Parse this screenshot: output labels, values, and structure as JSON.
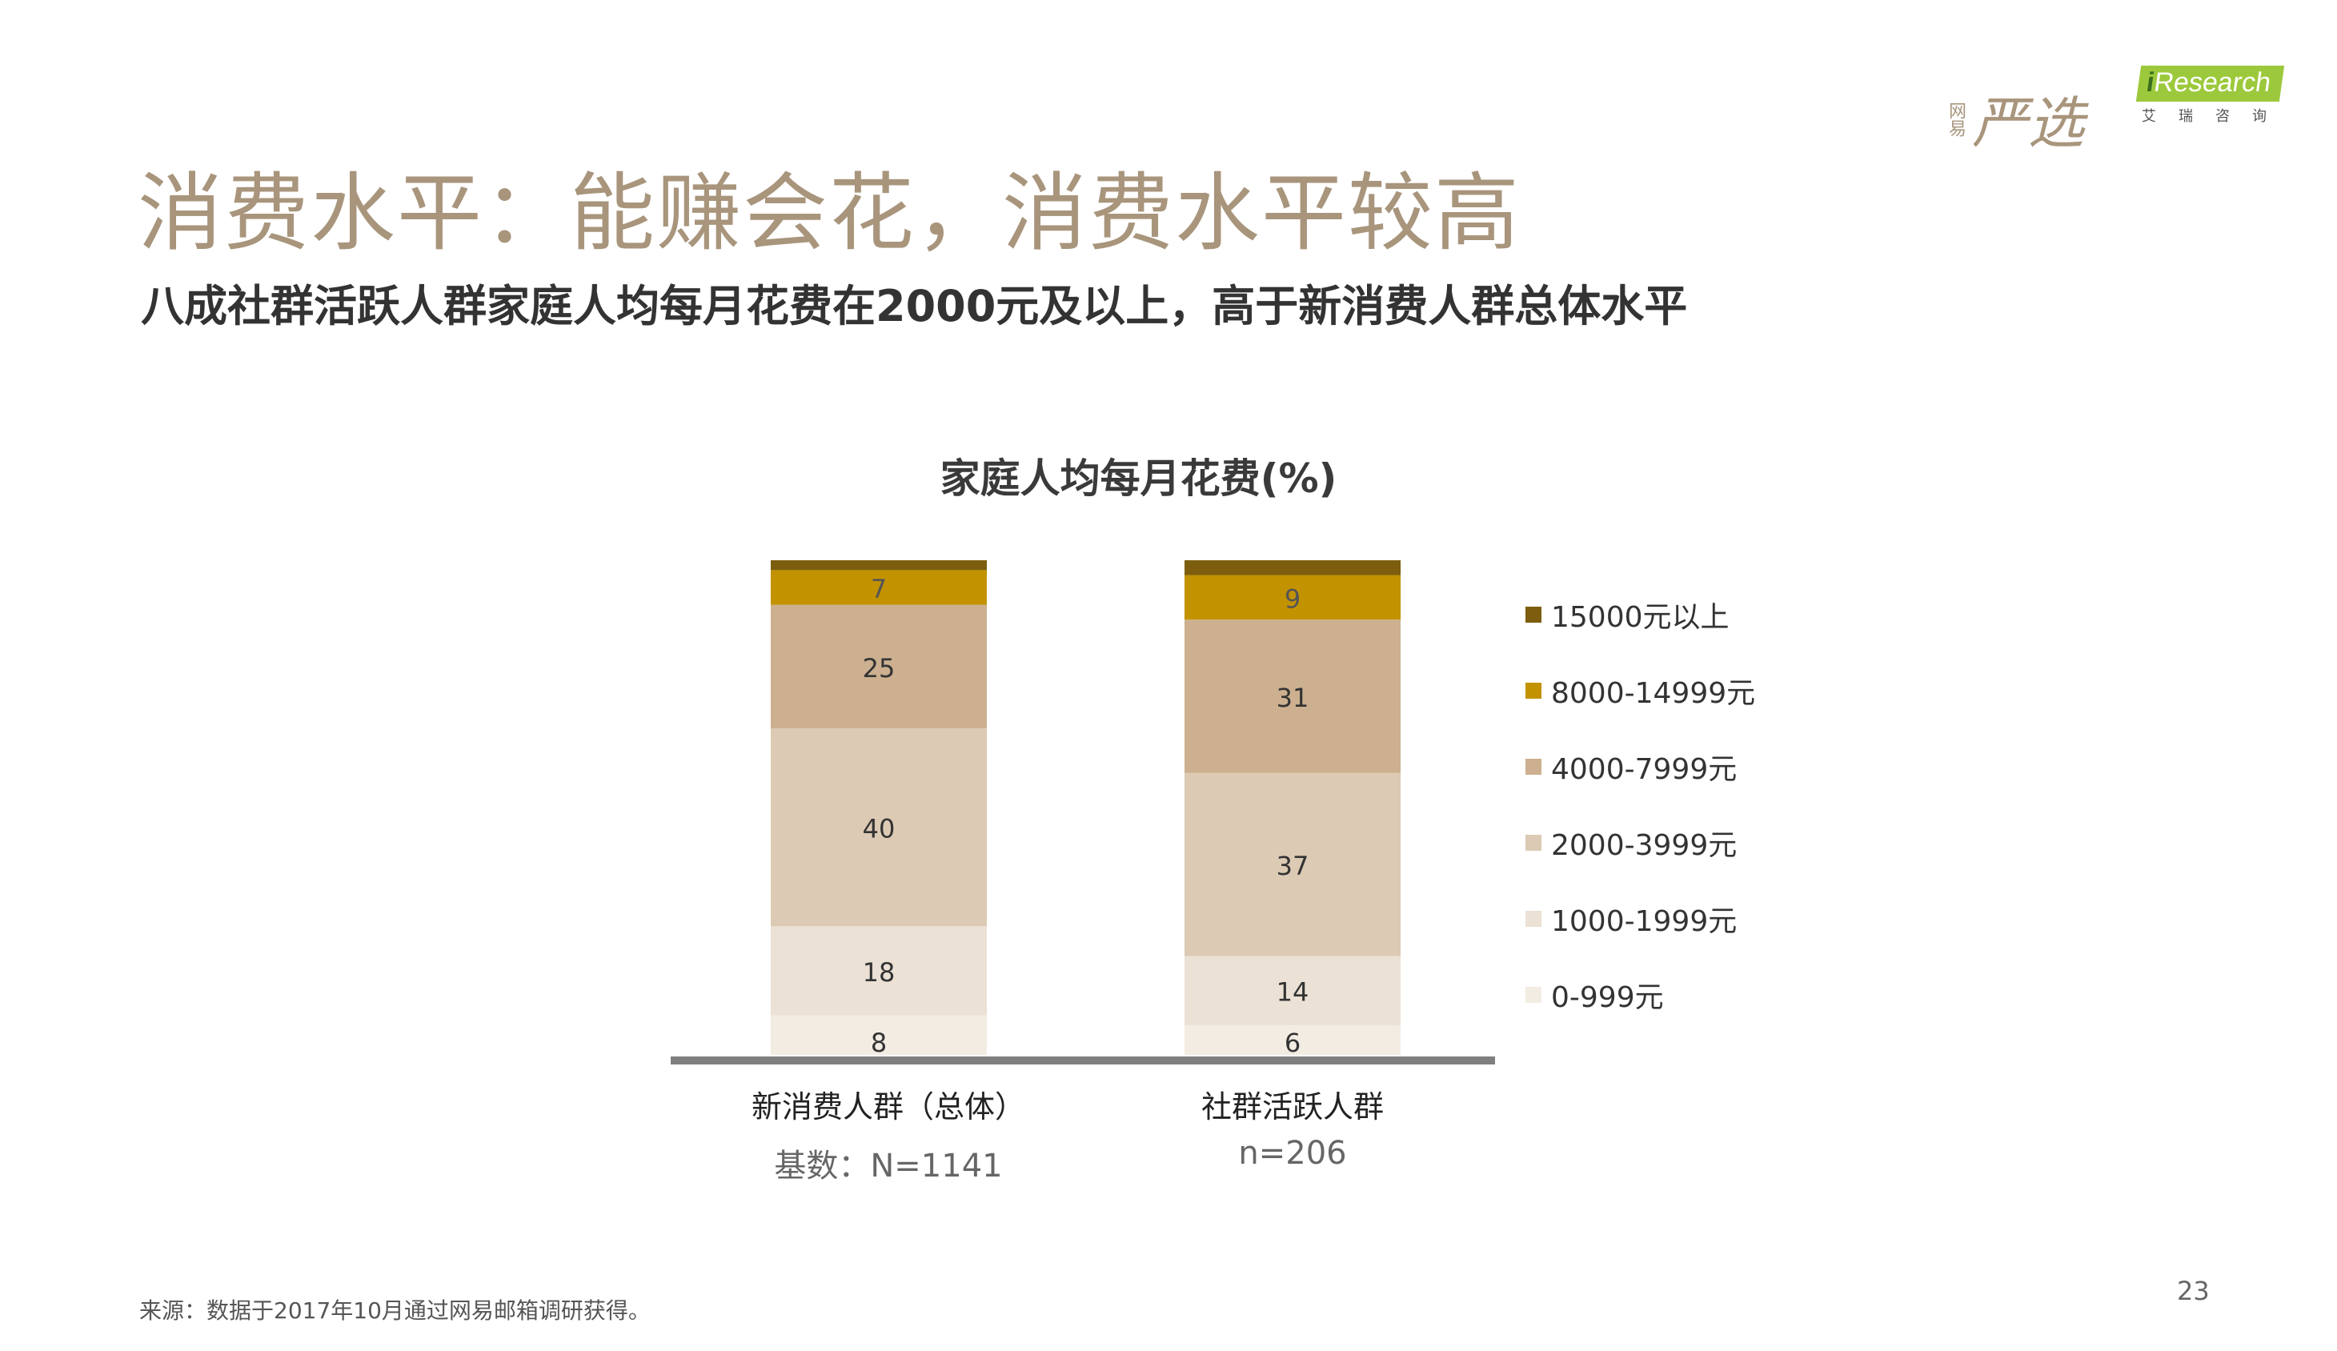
{
  "header": {
    "title": "消费水平：能赚会花，消费水平较高",
    "subtitle": "八成社群活跃人群家庭人均每月花费在2000元及以上，高于新消费人群总体水平"
  },
  "logos": {
    "yanxuan_small": "网易",
    "yanxuan_big": "严选",
    "iresearch_i": "i",
    "iresearch_name": "Research",
    "iresearch_sub": "艾瑞咨询"
  },
  "chart_data": {
    "type": "bar",
    "stacked": true,
    "title": "家庭人均每月花费(%)",
    "categories": [
      "新消费人群（总体）",
      "社群活跃人群"
    ],
    "base_labels": [
      "基数：N=1141",
      "n=206"
    ],
    "ylim": [
      0,
      100
    ],
    "legend_position": "right",
    "series": [
      {
        "name": "0-999元",
        "color": "#f3ece3",
        "values": [
          8,
          6
        ]
      },
      {
        "name": "1000-1999元",
        "color": "#ebe1d4",
        "values": [
          18,
          14
        ]
      },
      {
        "name": "2000-3999元",
        "color": "#dccab4",
        "values": [
          40,
          37
        ]
      },
      {
        "name": "4000-7999元",
        "color": "#ccb08f",
        "values": [
          25,
          31
        ]
      },
      {
        "name": "8000-14999元",
        "color": "#c39200",
        "values": [
          7,
          9
        ]
      },
      {
        "name": "15000元以上",
        "color": "#7c5e0e",
        "values": [
          2,
          3
        ]
      }
    ]
  },
  "footer": {
    "source": "来源：数据于2017年10月通过网易邮箱调研获得。",
    "page_number": "23"
  }
}
